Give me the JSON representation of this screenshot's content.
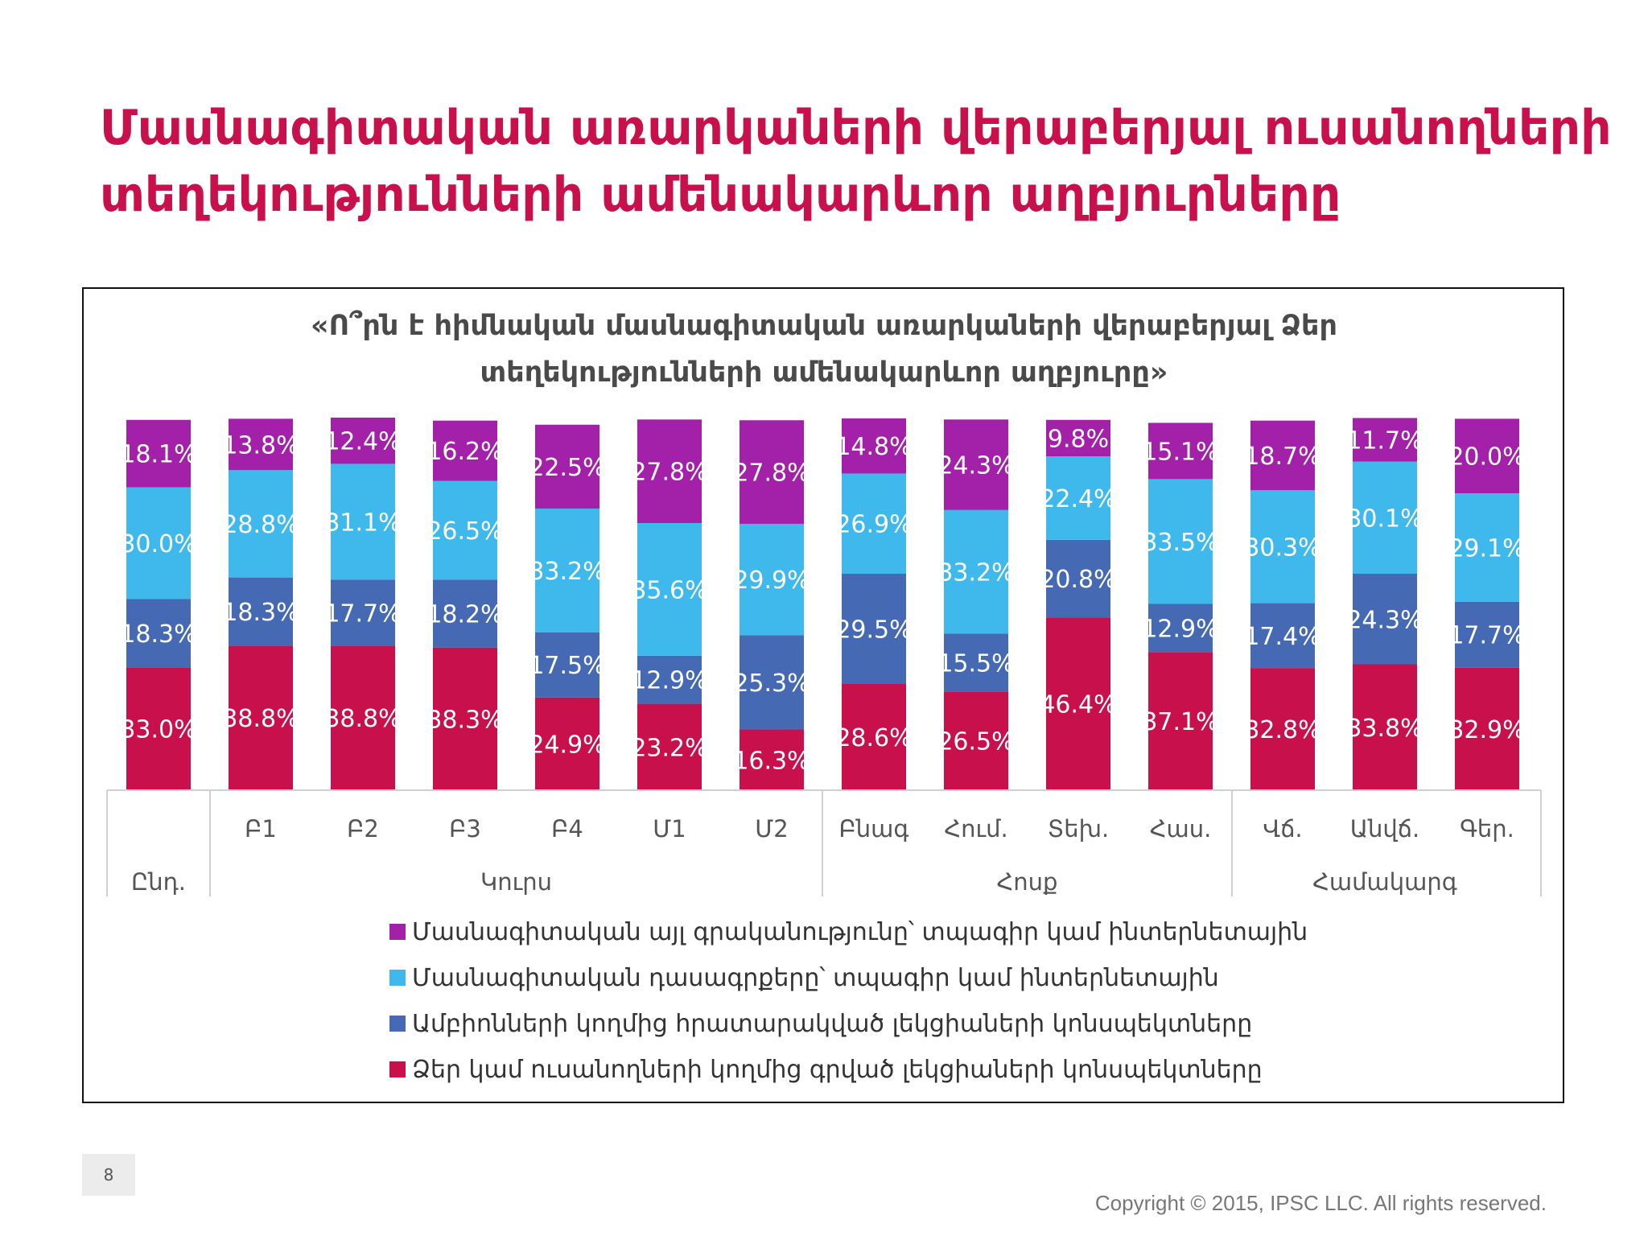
{
  "page": {
    "title_line1": "Մասնագիտական առարկաների վերաբերյալ ուսանողների",
    "title_line2": "տեղեկությունների ամենակարևոր աղբյուրները",
    "page_number": "8",
    "copyright": "Copyright © 2015, IPSC LLC. All rights reserved."
  },
  "chart_data": {
    "type": "bar",
    "stacked": true,
    "percent_stacked": true,
    "title_line1": "«Ո՞րն է հիմնական մասնագիտական առարկաների վերաբերյալ Ձեր",
    "title_line2": "տեղեկությունների ամենակարևոր աղբյուրը»",
    "categories": [
      "Ընդ.",
      "Բ1",
      "Բ2",
      "Բ3",
      "Բ4",
      "Մ1",
      "Մ2",
      "Բնագ",
      "Հում.",
      "Տեխ.",
      "Հաս.",
      "Վճ.",
      "Անվճ.",
      "Գեր."
    ],
    "category_groups": [
      {
        "label": "Ընդ.",
        "categories": [
          "Ընդ."
        ]
      },
      {
        "label": "Կուրս",
        "categories": [
          "Բ1",
          "Բ2",
          "Բ3",
          "Բ4",
          "Մ1",
          "Մ2"
        ]
      },
      {
        "label": "Հոսք",
        "categories": [
          "Բնագ",
          "Հում.",
          "Տեխ.",
          "Հաս."
        ]
      },
      {
        "label": "Համակարգ",
        "categories": [
          "Վճ.",
          "Անվճ.",
          "Գեր."
        ]
      }
    ],
    "series": [
      {
        "name": "Ձեր կամ ուսանողների կողմից գրված լեկցիաների կոնսպեկտները",
        "color": "#c8104c",
        "values": [
          33.0,
          38.8,
          38.8,
          38.3,
          24.9,
          23.2,
          16.3,
          28.6,
          26.5,
          46.4,
          37.1,
          32.8,
          33.8,
          32.9
        ],
        "labels": [
          "33.0%",
          "38.8%",
          "38.8%",
          "38.3%",
          "24.9%",
          "23.2%",
          "16.3%",
          "28.6%",
          "26.5%",
          "46.4%",
          "37.1%",
          "32.8%",
          "33.8%",
          "32.9%"
        ]
      },
      {
        "name": "Ամբիոնների կողմից հրատարակված լեկցիաների կոնսպեկտները",
        "color": "#4569b3",
        "values": [
          18.3,
          18.3,
          17.7,
          18.2,
          17.5,
          12.9,
          25.3,
          29.5,
          15.5,
          20.8,
          12.9,
          17.4,
          24.3,
          17.7
        ],
        "labels": [
          "18.3%",
          "18.3%",
          "17.7%",
          "18.2%",
          "17.5%",
          "12.9%",
          "25.3%",
          "29.5%",
          "15.5%",
          "20.8%",
          "12.9%",
          "17.4%",
          "24.3%",
          "17.7%"
        ]
      },
      {
        "name": "Մասնագիտական դասագրքերը՝ տպագիր կամ ինտերնետային",
        "color": "#3fb8ec",
        "values": [
          30.0,
          28.8,
          31.1,
          26.5,
          33.2,
          35.6,
          29.9,
          26.9,
          33.2,
          22.4,
          33.5,
          30.3,
          30.1,
          29.1
        ],
        "labels": [
          "30.0%",
          "28.8%",
          "31.1%",
          "26.5%",
          "33.2%",
          "35.6%",
          "29.9%",
          "26.9%",
          "33.2%",
          "22.4%",
          "33.5%",
          "30.3%",
          "30.1%",
          "29.1%"
        ]
      },
      {
        "name": "Մասնագիտական այլ գրականությունը՝ տպագիր կամ ինտերնետային",
        "color": "#a321a8",
        "values": [
          18.1,
          13.8,
          12.4,
          16.2,
          22.5,
          27.8,
          27.8,
          14.8,
          24.3,
          9.8,
          15.1,
          18.7,
          11.7,
          20.0
        ],
        "labels": [
          "18.1%",
          "13.8%",
          "12.4%",
          "16.2%",
          "22.5%",
          "27.8%",
          "27.8%",
          "14.8%",
          "24.3%",
          "9.8%",
          "15.1%",
          "18.7%",
          "11.7%",
          "20.0%"
        ]
      }
    ],
    "legend_order": [
      3,
      2,
      1,
      0
    ],
    "legend_position": "bottom",
    "grid": false
  }
}
